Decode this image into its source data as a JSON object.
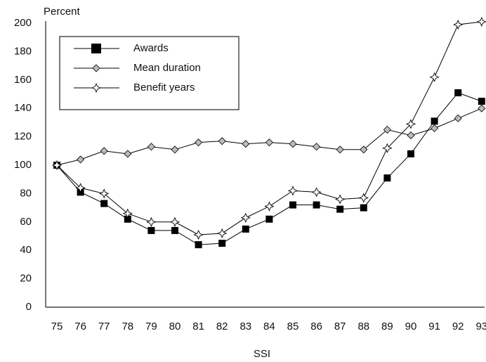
{
  "chart_data": {
    "type": "line",
    "y_label": "Percent",
    "x_label": "SSI",
    "categories": [
      "75",
      "76",
      "77",
      "78",
      "79",
      "80",
      "81",
      "82",
      "83",
      "84",
      "85",
      "86",
      "87",
      "88",
      "89",
      "90",
      "91",
      "92",
      "93"
    ],
    "series": [
      {
        "name": "Awards",
        "color": "#000000",
        "marker": "square",
        "values": [
          100,
          81,
          73,
          62,
          54,
          54,
          44,
          45,
          55,
          62,
          72,
          72,
          69,
          70,
          91,
          108,
          131,
          151,
          145
        ]
      },
      {
        "name": "Mean duration",
        "color": "#000000",
        "marker": "diamond",
        "values": [
          100,
          104,
          110,
          108,
          113,
          111,
          116,
          117,
          115,
          116,
          115,
          113,
          111,
          111,
          125,
          121,
          126,
          133,
          140
        ]
      },
      {
        "name": "Benefit years",
        "color": "#000000",
        "marker": "star",
        "values": [
          100,
          84,
          80,
          66,
          60,
          60,
          51,
          52,
          63,
          71,
          82,
          81,
          76,
          77,
          112,
          129,
          162,
          199,
          201
        ]
      }
    ],
    "ylim": [
      0,
      200
    ],
    "yticks": [
      0,
      20,
      40,
      60,
      80,
      100,
      120,
      140,
      160,
      180,
      200
    ],
    "grid": false,
    "legend": "top-left"
  }
}
